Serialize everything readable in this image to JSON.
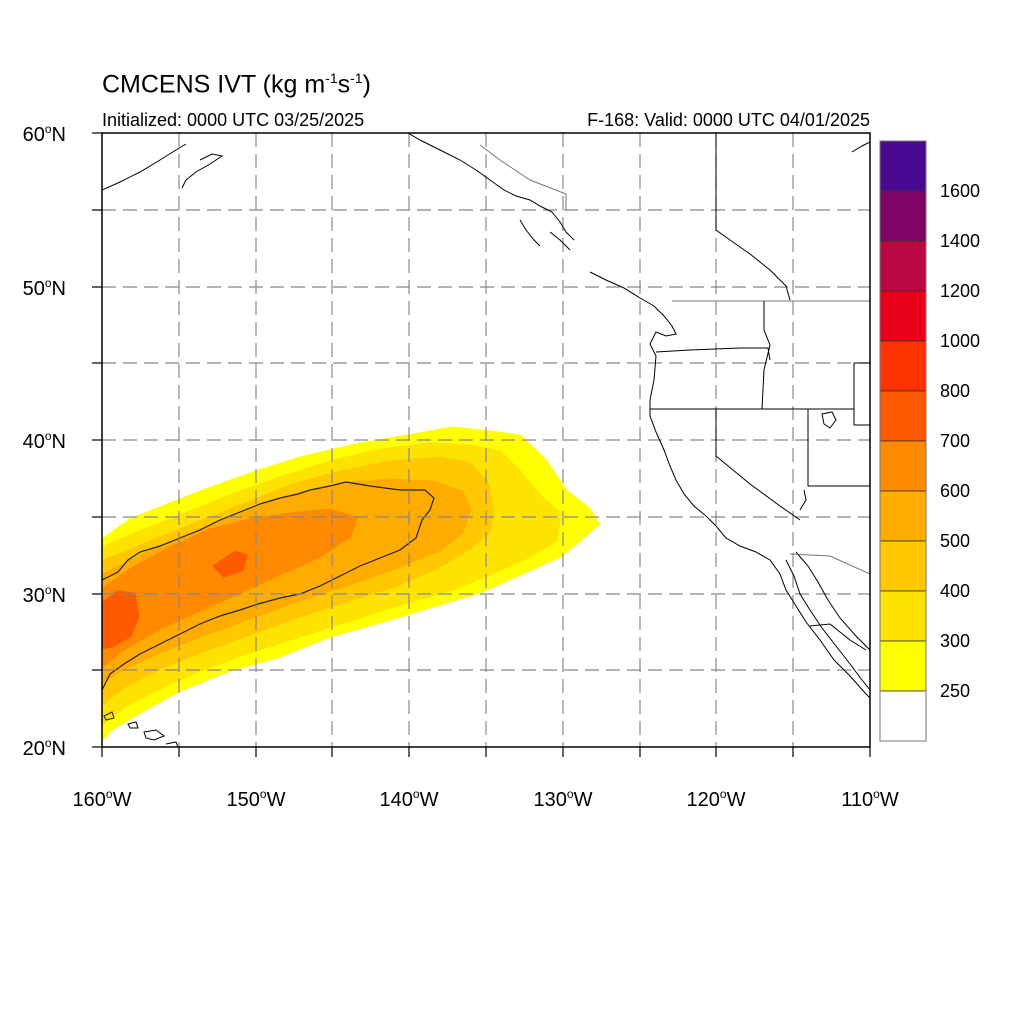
{
  "title": {
    "main": "CMCENS IVT (kg m",
    "sup1": "-1",
    "mid": "s",
    "sup2": "-1",
    "end": ")"
  },
  "subtitle_left": "Initialized: 0000 UTC 03/25/2025",
  "subtitle_right": "F-168: Valid: 0000 UTC 04/01/2025",
  "lat_labels": [
    "60",
    "50",
    "40",
    "30",
    "20"
  ],
  "lon_labels": [
    "160",
    "150",
    "140",
    "130",
    "120",
    "110"
  ],
  "lat_suffix": "N",
  "lon_suffix": "W",
  "colorbar": {
    "labels": [
      "1600",
      "1400",
      "1200",
      "1000",
      "800",
      "700",
      "600",
      "500",
      "400",
      "300",
      "250"
    ],
    "colors": [
      "#4b0891",
      "#7e0466",
      "#bb0742",
      "#e8001a",
      "#ff3300",
      "#ff5a00",
      "#ff8a00",
      "#ffab00",
      "#ffc800",
      "#ffe300",
      "#ffff00",
      "#ffffff"
    ]
  },
  "map_data": {
    "projection": "cylindrical-equidistant",
    "lon_range": [
      -160,
      -110
    ],
    "lat_range": [
      20,
      60
    ],
    "field": "Integrated Vapor Transport",
    "feature": "atmospheric river plume from near Hawaii toward 128W, peak 700-800 kg/m/s near 158W 28N"
  }
}
